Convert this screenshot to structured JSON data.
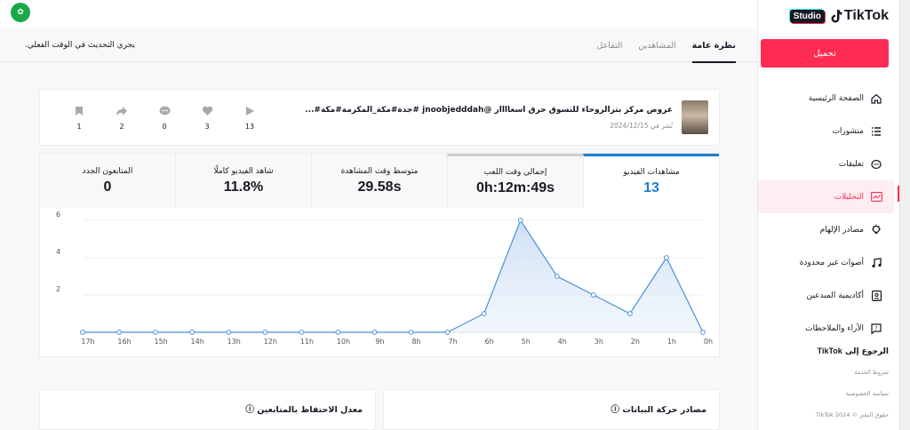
{
  "app": {
    "brand": "TikTok",
    "studio": "Studio",
    "upload_label": "تحميل",
    "realtime_note": "يجري التحديث في الوقت الفعلي."
  },
  "nav": {
    "items": [
      {
        "label": "الصفحة الرئيسية",
        "icon": "home-icon"
      },
      {
        "label": "منشورات",
        "icon": "list-icon"
      },
      {
        "label": "تعليقات",
        "icon": "comment-icon"
      },
      {
        "label": "التحليلات",
        "icon": "analytics-icon",
        "active": true
      },
      {
        "label": "مصادر الإلهام",
        "icon": "lightbulb-icon"
      },
      {
        "label": "أصوات غير محدودة",
        "icon": "music-icon"
      },
      {
        "label": "أكاديمية المبدعين",
        "icon": "academy-icon"
      },
      {
        "label": "الآراء والملاحظات",
        "icon": "feedback-icon"
      }
    ],
    "back_prefix": "الرجوع إلى",
    "back_brand": "TikTok",
    "footer": [
      "شروط الخدمة",
      "سياسة الخصوصية",
      "حقوق النشر © 2024 TikTok"
    ]
  },
  "tabs": [
    "نظرة عامة",
    "المشاهدين",
    "التفاعل"
  ],
  "video": {
    "title": "عروض مركز بترالروحاء للتسوق حرق أسعاااار @jnoobjedddah #جدة#مكة_المكرمة#مكة#...",
    "date": "نُشر في 2024/12/15",
    "stats": [
      {
        "icon": "play-icon",
        "value": "13"
      },
      {
        "icon": "heart-icon",
        "value": "3"
      },
      {
        "icon": "comment-icon",
        "value": "0"
      },
      {
        "icon": "share-icon",
        "value": "2"
      },
      {
        "icon": "bookmark-icon",
        "value": "1"
      }
    ]
  },
  "metrics": [
    {
      "label": "مشاهدات الفيديو",
      "value": "13"
    },
    {
      "label": "إجمالي وقت اللعب",
      "value": "0h:12m:49s"
    },
    {
      "label": "متوسط وقت المشاهدة",
      "value": "29.58s"
    },
    {
      "label": "شاهد الفيديو كاملًا",
      "value": "11.8%"
    },
    {
      "label": "المتابعون الجدد",
      "value": "0"
    }
  ],
  "chart_data": {
    "type": "area",
    "x": [
      "17h",
      "16h",
      "15h",
      "14h",
      "13h",
      "12h",
      "11h",
      "10h",
      "9h",
      "8h",
      "7h",
      "6h",
      "5h",
      "4h",
      "3h",
      "2h",
      "1h",
      "0h"
    ],
    "values": [
      0,
      0,
      0,
      0,
      0,
      0,
      0,
      0,
      0,
      0,
      0,
      1,
      6,
      3,
      2,
      1,
      4,
      0
    ],
    "yticks": [
      "2",
      "4",
      "6"
    ],
    "ylim": [
      0,
      6
    ],
    "color": "#4a90d9"
  },
  "bottom": {
    "retention_title": "معدل الاحتفاظ بالمتابعين ⓘ",
    "traffic_title": "مصادر حركة البيانات ⓘ"
  }
}
